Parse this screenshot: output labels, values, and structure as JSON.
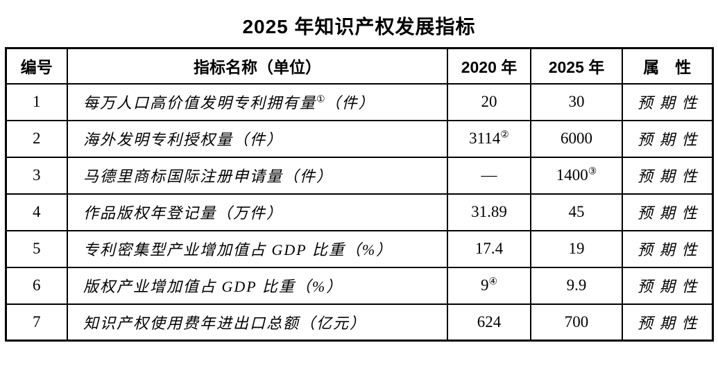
{
  "page": {
    "title": "2025 年知识产权发展指标"
  },
  "table": {
    "headers": {
      "no": "编号",
      "name": "指标名称（单位）",
      "y2020": "2020 年",
      "y2025": "2025 年",
      "attr": "属　性"
    },
    "rows": [
      {
        "no": "1",
        "name": "每万人口高价值发明专利拥有量",
        "name_sup": "①",
        "name_tail": "（件）",
        "v2020": "20",
        "v2020_sup": "",
        "v2025": "30",
        "v2025_sup": "",
        "attr": "预期性"
      },
      {
        "no": "2",
        "name": "海外发明专利授权量（件）",
        "name_sup": "",
        "name_tail": "",
        "v2020": "3114",
        "v2020_sup": "②",
        "v2025": "6000",
        "v2025_sup": "",
        "attr": "预期性"
      },
      {
        "no": "3",
        "name": "马德里商标国际注册申请量（件）",
        "name_sup": "",
        "name_tail": "",
        "v2020": "—",
        "v2020_sup": "",
        "v2025": "1400",
        "v2025_sup": "③",
        "attr": "预期性"
      },
      {
        "no": "4",
        "name": "作品版权年登记量（万件）",
        "name_sup": "",
        "name_tail": "",
        "v2020": "31.89",
        "v2020_sup": "",
        "v2025": "45",
        "v2025_sup": "",
        "attr": "预期性"
      },
      {
        "no": "5",
        "name": "专利密集型产业增加值占 GDP 比重（%）",
        "name_sup": "",
        "name_tail": "",
        "v2020": "17.4",
        "v2020_sup": "",
        "v2025": "19",
        "v2025_sup": "",
        "attr": "预期性"
      },
      {
        "no": "6",
        "name": "版权产业增加值占 GDP 比重（%）",
        "name_sup": "",
        "name_tail": "",
        "v2020": "9",
        "v2020_sup": "④",
        "v2025": "9.9",
        "v2025_sup": "",
        "attr": "预期性"
      },
      {
        "no": "7",
        "name": "知识产权使用费年进出口总额（亿元）",
        "name_sup": "",
        "name_tail": "",
        "v2020": "624",
        "v2020_sup": "",
        "v2025": "700",
        "v2025_sup": "",
        "attr": "预期性"
      }
    ]
  }
}
